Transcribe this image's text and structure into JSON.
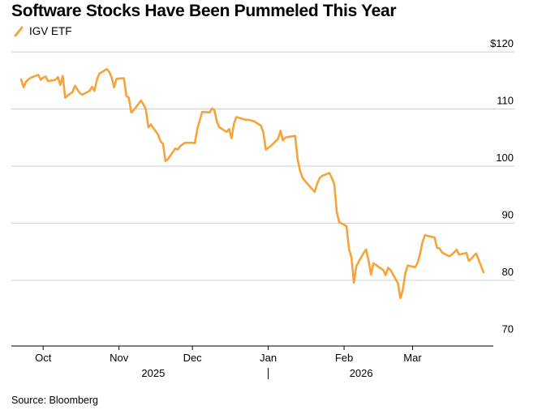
{
  "title": "Software Stocks Have Been Pummeled This Year",
  "source": "Source: Bloomberg",
  "colors": {
    "line": "#F5A33A",
    "grid": "#cfcfcf",
    "axis": "#000000",
    "text": "#000000"
  },
  "chart_data": {
    "type": "line",
    "title": "Software Stocks Have Been Pummeled This Year",
    "series": [
      {
        "name": "IGV ETF",
        "color": "#F5A33A",
        "points": [
          [
            "2025-09-22",
            115.2
          ],
          [
            "2025-09-23",
            113.8
          ],
          [
            "2025-09-24",
            114.8
          ],
          [
            "2025-09-25",
            115.2
          ],
          [
            "2025-09-26",
            115.5
          ],
          [
            "2025-09-29",
            116.0
          ],
          [
            "2025-09-30",
            115.1
          ],
          [
            "2025-10-01",
            115.5
          ],
          [
            "2025-10-02",
            115.7
          ],
          [
            "2025-10-03",
            114.9
          ],
          [
            "2025-10-06",
            115.1
          ],
          [
            "2025-10-07",
            115.6
          ],
          [
            "2025-10-08",
            114.2
          ],
          [
            "2025-10-09",
            115.8
          ],
          [
            "2025-10-10",
            112.0
          ],
          [
            "2025-10-13",
            113.0
          ],
          [
            "2025-10-14",
            114.1
          ],
          [
            "2025-10-15",
            113.4
          ],
          [
            "2025-10-16",
            112.8
          ],
          [
            "2025-10-17",
            112.5
          ],
          [
            "2025-10-20",
            113.2
          ],
          [
            "2025-10-21",
            113.9
          ],
          [
            "2025-10-22",
            113.2
          ],
          [
            "2025-10-23",
            115.2
          ],
          [
            "2025-10-24",
            116.2
          ],
          [
            "2025-10-27",
            117.0
          ],
          [
            "2025-10-28",
            116.5
          ],
          [
            "2025-10-29",
            115.5
          ],
          [
            "2025-10-30",
            113.8
          ],
          [
            "2025-10-31",
            115.3
          ],
          [
            "2025-11-03",
            115.4
          ],
          [
            "2025-11-04",
            112.3
          ],
          [
            "2025-11-05",
            112.0
          ],
          [
            "2025-11-06",
            109.4
          ],
          [
            "2025-11-07",
            109.8
          ],
          [
            "2025-11-10",
            111.5
          ],
          [
            "2025-11-11",
            110.8
          ],
          [
            "2025-11-12",
            109.9
          ],
          [
            "2025-11-13",
            106.8
          ],
          [
            "2025-11-14",
            107.3
          ],
          [
            "2025-11-17",
            105.5
          ],
          [
            "2025-11-18",
            104.3
          ],
          [
            "2025-11-19",
            103.9
          ],
          [
            "2025-11-20",
            100.9
          ],
          [
            "2025-11-21",
            101.2
          ],
          [
            "2025-11-24",
            103.1
          ],
          [
            "2025-11-25",
            102.9
          ],
          [
            "2025-11-26",
            103.5
          ],
          [
            "2025-11-28",
            104.1
          ],
          [
            "2025-12-01",
            104.1
          ],
          [
            "2025-12-02",
            104.0
          ],
          [
            "2025-12-03",
            106.5
          ],
          [
            "2025-12-04",
            108.0
          ],
          [
            "2025-12-05",
            109.5
          ],
          [
            "2025-12-08",
            109.4
          ],
          [
            "2025-12-09",
            110.1
          ],
          [
            "2025-12-10",
            109.8
          ],
          [
            "2025-12-11",
            107.8
          ],
          [
            "2025-12-12",
            106.8
          ],
          [
            "2025-12-15",
            106.0
          ],
          [
            "2025-12-16",
            106.5
          ],
          [
            "2025-12-17",
            104.9
          ],
          [
            "2025-12-18",
            107.5
          ],
          [
            "2025-12-19",
            108.6
          ],
          [
            "2025-12-22",
            108.2
          ],
          [
            "2025-12-23",
            108.1
          ],
          [
            "2025-12-24",
            108.1
          ],
          [
            "2025-12-26",
            107.9
          ],
          [
            "2025-12-29",
            107.1
          ],
          [
            "2025-12-30",
            105.9
          ],
          [
            "2025-12-31",
            102.9
          ],
          [
            "2026-01-02",
            103.5
          ],
          [
            "2026-01-05",
            104.8
          ],
          [
            "2026-01-06",
            106.2
          ],
          [
            "2026-01-07",
            104.5
          ],
          [
            "2026-01-08",
            105.0
          ],
          [
            "2026-01-09",
            105.1
          ],
          [
            "2026-01-12",
            105.3
          ],
          [
            "2026-01-13",
            101.2
          ],
          [
            "2026-01-14",
            99.2
          ],
          [
            "2026-01-15",
            98.0
          ],
          [
            "2026-01-16",
            97.4
          ],
          [
            "2026-01-20",
            95.5
          ],
          [
            "2026-01-21",
            96.9
          ],
          [
            "2026-01-22",
            97.9
          ],
          [
            "2026-01-23",
            98.3
          ],
          [
            "2026-01-26",
            98.8
          ],
          [
            "2026-01-27",
            97.9
          ],
          [
            "2026-01-28",
            96.8
          ],
          [
            "2026-01-29",
            92.0
          ],
          [
            "2026-01-30",
            90.2
          ],
          [
            "2026-02-02",
            89.5
          ],
          [
            "2026-02-03",
            85.5
          ],
          [
            "2026-02-04",
            84.0
          ],
          [
            "2026-02-05",
            79.6
          ],
          [
            "2026-02-06",
            82.5
          ],
          [
            "2026-02-09",
            84.8
          ],
          [
            "2026-02-10",
            85.4
          ],
          [
            "2026-02-11",
            83.5
          ],
          [
            "2026-02-12",
            81.0
          ],
          [
            "2026-02-13",
            83.0
          ],
          [
            "2026-02-17",
            81.8
          ],
          [
            "2026-02-18",
            80.9
          ],
          [
            "2026-02-19",
            82.2
          ],
          [
            "2026-02-20",
            81.8
          ],
          [
            "2026-02-23",
            79.5
          ],
          [
            "2026-02-24",
            76.9
          ],
          [
            "2026-02-25",
            78.3
          ],
          [
            "2026-02-26",
            81.2
          ],
          [
            "2026-02-27",
            82.6
          ],
          [
            "2026-03-02",
            82.3
          ],
          [
            "2026-03-03",
            83.0
          ],
          [
            "2026-03-04",
            84.5
          ],
          [
            "2026-03-05",
            86.6
          ],
          [
            "2026-03-06",
            87.9
          ],
          [
            "2026-03-09",
            87.6
          ],
          [
            "2026-03-10",
            87.5
          ],
          [
            "2026-03-11",
            85.7
          ],
          [
            "2026-03-12",
            85.6
          ],
          [
            "2026-03-13",
            84.9
          ],
          [
            "2026-03-16",
            84.2
          ],
          [
            "2026-03-17",
            84.5
          ],
          [
            "2026-03-18",
            84.9
          ],
          [
            "2026-03-19",
            85.4
          ],
          [
            "2026-03-20",
            84.5
          ],
          [
            "2026-03-23",
            84.8
          ],
          [
            "2026-03-24",
            83.4
          ],
          [
            "2026-03-25",
            83.8
          ],
          [
            "2026-03-26",
            84.3
          ],
          [
            "2026-03-27",
            84.7
          ],
          [
            "2026-03-30",
            81.4
          ]
        ]
      }
    ],
    "xlim": [
      "2025-09-18",
      "2026-04-03"
    ],
    "ylim": [
      68.5,
      122
    ],
    "y_ticks": [
      {
        "value": 120,
        "label": "$120"
      },
      {
        "value": 110,
        "label": "110"
      },
      {
        "value": 100,
        "label": "100"
      },
      {
        "value": 90,
        "label": "90"
      },
      {
        "value": 80,
        "label": "80"
      },
      {
        "value": 70,
        "label": "70"
      }
    ],
    "x_ticks": [
      {
        "date": "2025-10-01",
        "label": "Oct"
      },
      {
        "date": "2025-11-01",
        "label": "Nov"
      },
      {
        "date": "2025-12-01",
        "label": "Dec"
      },
      {
        "date": "2026-01-01",
        "label": "Jan"
      },
      {
        "date": "2026-02-01",
        "label": "Feb"
      },
      {
        "date": "2026-03-01",
        "label": "Mar"
      }
    ],
    "year_labels": [
      {
        "date": "2025-11-15",
        "label": "2025"
      },
      {
        "date": "2026-02-08",
        "label": "2026"
      }
    ],
    "year_divider": "2026-01-01",
    "grid": true
  }
}
